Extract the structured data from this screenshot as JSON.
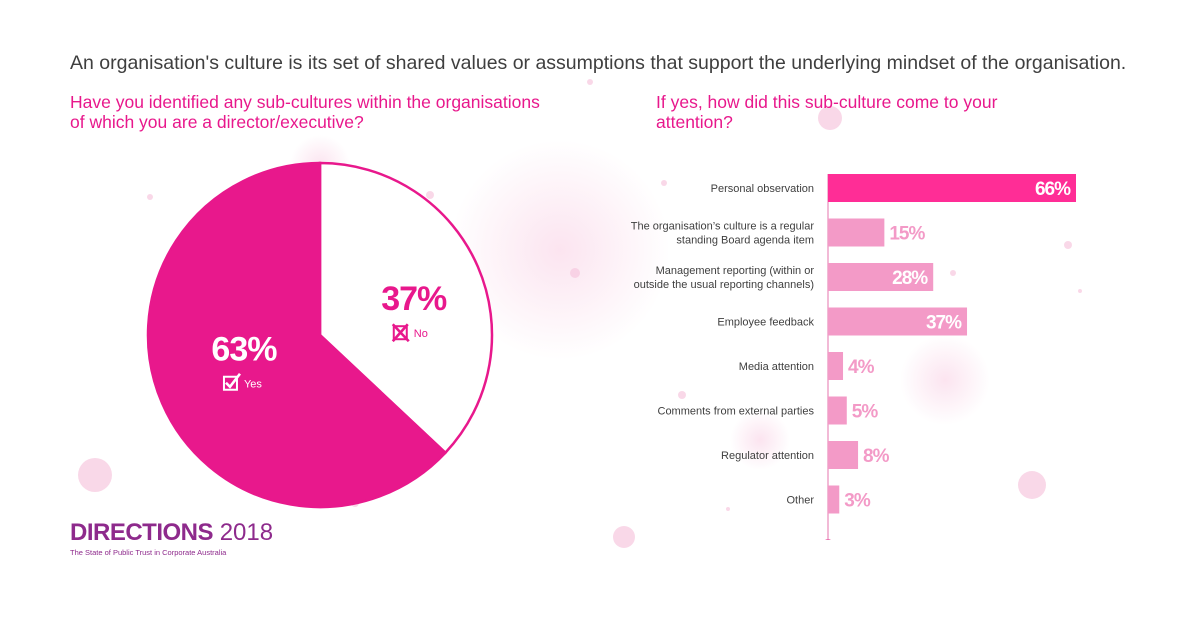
{
  "headline": "An organisation's culture is its set of shared values or assumptions that support the underlying mindset of the organisation.",
  "colors": {
    "accent": "#e8188c",
    "bar_highlight": "#ff2d96",
    "bar": "#f39ac7",
    "brand": "#8e2a8c",
    "text_dark": "#3f3f3f"
  },
  "brand": {
    "name": "DIRECTIONS",
    "year": "2018",
    "tagline": "The State of Public Trust in Corporate Australia"
  },
  "chart_data": [
    {
      "type": "pie",
      "title": "Have you identified any sub-cultures within the organisations of which you are a director/executive?",
      "slices": [
        {
          "label": "No",
          "value": 37,
          "value_label": "37%",
          "icon": "cross-box-icon",
          "color": "#ffffff"
        },
        {
          "label": "Yes",
          "value": 63,
          "value_label": "63%",
          "icon": "check-box-icon",
          "color": "#e8188c"
        }
      ]
    },
    {
      "type": "bar",
      "orientation": "horizontal",
      "title": "If yes, how did this sub-culture come to your attention?",
      "xlim": [
        0,
        66
      ],
      "categories": [
        "Personal observation",
        "The organisation's culture is a regular standing Board agenda item",
        "Management reporting (within or outside the usual reporting channels)",
        "Employee feedback",
        "Media attention",
        "Comments from external parties",
        "Regulator attention",
        "Other"
      ],
      "category_lines": [
        [
          "Personal observation"
        ],
        [
          "The organisation’s culture is a regular",
          "standing Board agenda item"
        ],
        [
          "Management reporting (within or",
          "outside the usual reporting channels)"
        ],
        [
          "Employee feedback"
        ],
        [
          "Media attention"
        ],
        [
          "Comments from external parties"
        ],
        [
          "Regulator attention"
        ],
        [
          "Other"
        ]
      ],
      "values": [
        66,
        15,
        28,
        37,
        4,
        5,
        8,
        3
      ],
      "value_labels": [
        "66%",
        "15%",
        "28%",
        "37%",
        "4%",
        "5%",
        "8%",
        "3%"
      ],
      "highlight_index": 0
    }
  ]
}
